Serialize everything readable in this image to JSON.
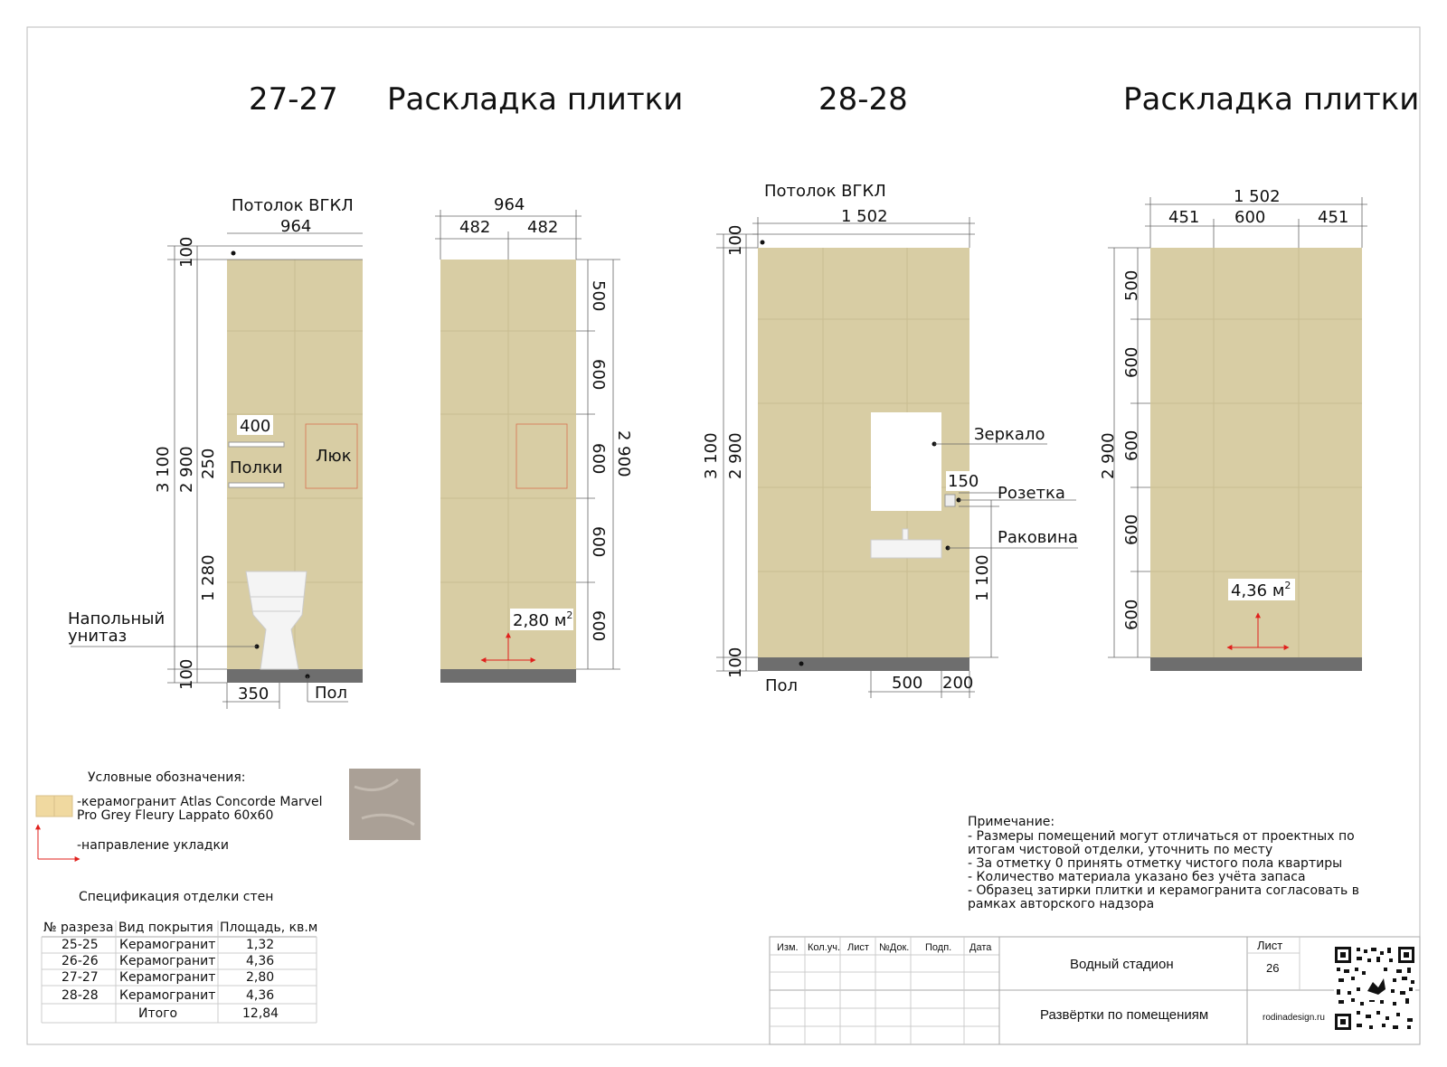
{
  "view_2727": {
    "section": "27-27",
    "title": "Раскладка плитки",
    "ceiling_label": "Потолок ВГКЛ",
    "width_total": "964",
    "height_total": "3 100",
    "height_tiled": "2 900",
    "top_gap": "100",
    "bottom_gap": "100",
    "shelf_gap": "250",
    "shelf_height": "1 280",
    "shelf_width": "400",
    "shelves_label": "Полки",
    "hatch_label": "Люк",
    "toilet_label_line1": "Напольный",
    "toilet_label_line2": "унитаз",
    "toilet_offset": "350",
    "floor_label": "Пол",
    "right_width_total": "964",
    "right_half_1": "482",
    "right_half_2": "482",
    "right_rows": [
      "500",
      "600",
      "600",
      "600",
      "600"
    ],
    "right_height_total": "2 900",
    "area_value": "2,80",
    "area_unit": "м",
    "area_sup": "2"
  },
  "view_2828": {
    "section": "28-28",
    "title": "Раскладка плитки",
    "ceiling_label": "Потолок ВГКЛ",
    "width_total": "1 502",
    "top_gap": "100",
    "height_total": "3 100",
    "height_tiled": "2 900",
    "sink_height": "1 100",
    "bottom_gap": "100",
    "mirror_label": "Зеркало",
    "socket_label": "Розетка",
    "socket_dim": "150",
    "sink_label": "Раковина",
    "floor_label": "Пол",
    "sink_width": "500",
    "sink_offset": "200",
    "right_width_total": "1 502",
    "right_seg_1": "451",
    "right_seg_2": "600",
    "right_seg_3": "451",
    "right_rows": [
      "500",
      "600",
      "600",
      "600",
      "600"
    ],
    "right_height_total": "2 900",
    "area_value": "4,36",
    "area_unit": "м",
    "area_sup": "2"
  },
  "legend": {
    "heading": "Условные обозначения:",
    "tile_line1": "-керамогранит Atlas Concorde Marvel",
    "tile_line2": "Pro Grey Fleury Lappato 60х60",
    "direction": "-направление укладки",
    "tile_color": "#f0d9a0",
    "sample_color": "#aaa096"
  },
  "spec": {
    "heading": "Спецификация отделки стен",
    "columns": [
      "№ разреза",
      "Вид покрытия",
      "Площадь, кв.м"
    ],
    "rows": [
      [
        "25-25",
        "Керамогранит",
        "1,32"
      ],
      [
        "26-26",
        "Керамогранит",
        "4,36"
      ],
      [
        "27-27",
        "Керамогранит",
        "2,80"
      ],
      [
        "28-28",
        "Керамогранит",
        "4,36"
      ]
    ],
    "total_label": "Итого",
    "total_value": "12,84"
  },
  "notes": {
    "heading": "Примечание:",
    "lines": [
      "- Размеры помещений могут отличаться от проектных по",
      "итогам чистовой отделки, уточнить по месту",
      "- За отметку 0 принять отметку чистого пола квартиры",
      "- Количество материала указано без учёта запаса",
      "- Образец затирки плитки и керамогранита согласовать в",
      "рамках авторского надзора"
    ]
  },
  "stamp": {
    "columns": [
      "Изм.",
      "Кол.уч.",
      "Лист",
      "№Док.",
      "Подп.",
      "Дата"
    ],
    "project": "Водный стадион",
    "sheet_title": "Развёртки по помещениям",
    "sheet_label": "Лист",
    "sheet_number": "26",
    "site": "rodinadesign.ru"
  },
  "colors": {
    "wall": "#d8cda4",
    "floor": "#6e6e6e",
    "arrow": "#e0201c",
    "hatch": "#d97050"
  }
}
